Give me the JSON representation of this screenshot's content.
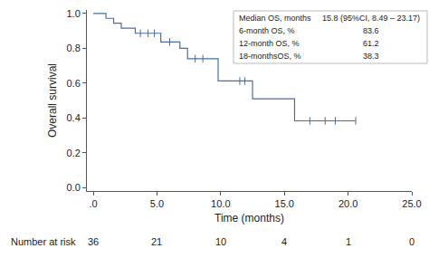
{
  "chart_data": {
    "type": "line",
    "line_style": "step",
    "marker": "line-ns-open",
    "color": "#4a6f9c",
    "x_label": "Time (months)",
    "y_label": "Overall survival",
    "x": [
      0,
      1.0,
      1.6,
      2.2,
      3.3,
      5.3,
      6.8,
      7.4,
      9.8,
      12.5,
      15.8,
      20.6
    ],
    "values": [
      1.0,
      0.972,
      0.944,
      0.915,
      0.886,
      0.836,
      0.8,
      0.74,
      0.612,
      0.51,
      0.383,
      0.383
    ],
    "censored_x": [
      3.7,
      4.3,
      4.8,
      6.0,
      8.0,
      8.6,
      11.5,
      11.9,
      17.0,
      18.2,
      19.0,
      20.6
    ],
    "censored_values": [
      0.886,
      0.886,
      0.886,
      0.836,
      0.74,
      0.74,
      0.612,
      0.612,
      0.383,
      0.383,
      0.383,
      0.383
    ],
    "xlim": [
      -0.5,
      25
    ],
    "xticks": [
      {
        "value": 0,
        "label": ".0"
      },
      {
        "value": 5,
        "label": "5.0"
      },
      {
        "value": 10,
        "label": "10.0"
      },
      {
        "value": 15,
        "label": "15.0"
      },
      {
        "value": 20,
        "label": "20.0"
      },
      {
        "value": 25,
        "label": "25.0"
      }
    ],
    "ylim": [
      -0.02,
      1.02
    ],
    "yticks": [
      {
        "value": 0,
        "label": "0.0"
      },
      {
        "value": 0.2,
        "label": "0.2"
      },
      {
        "value": 0.4,
        "label": "0.4"
      },
      {
        "value": 0.6,
        "label": "0.6"
      },
      {
        "value": 0.8,
        "label": "0.8"
      },
      {
        "value": 1.0,
        "label": "1.0"
      }
    ],
    "grid": false,
    "stats_table": [
      [
        "Median OS, months",
        "15.8 (95%CI, 8.49 – 23.17)"
      ],
      [
        "6-month OS, %",
        "83.6"
      ],
      [
        "12-month OS, %",
        "61.2"
      ],
      [
        "18-monthsOS, %",
        "38.3"
      ]
    ],
    "risk_table": {
      "label": "Number at risk",
      "x": [
        0,
        5,
        10,
        15,
        20,
        25
      ],
      "counts": [
        36,
        21,
        10,
        4,
        1,
        0
      ]
    }
  }
}
